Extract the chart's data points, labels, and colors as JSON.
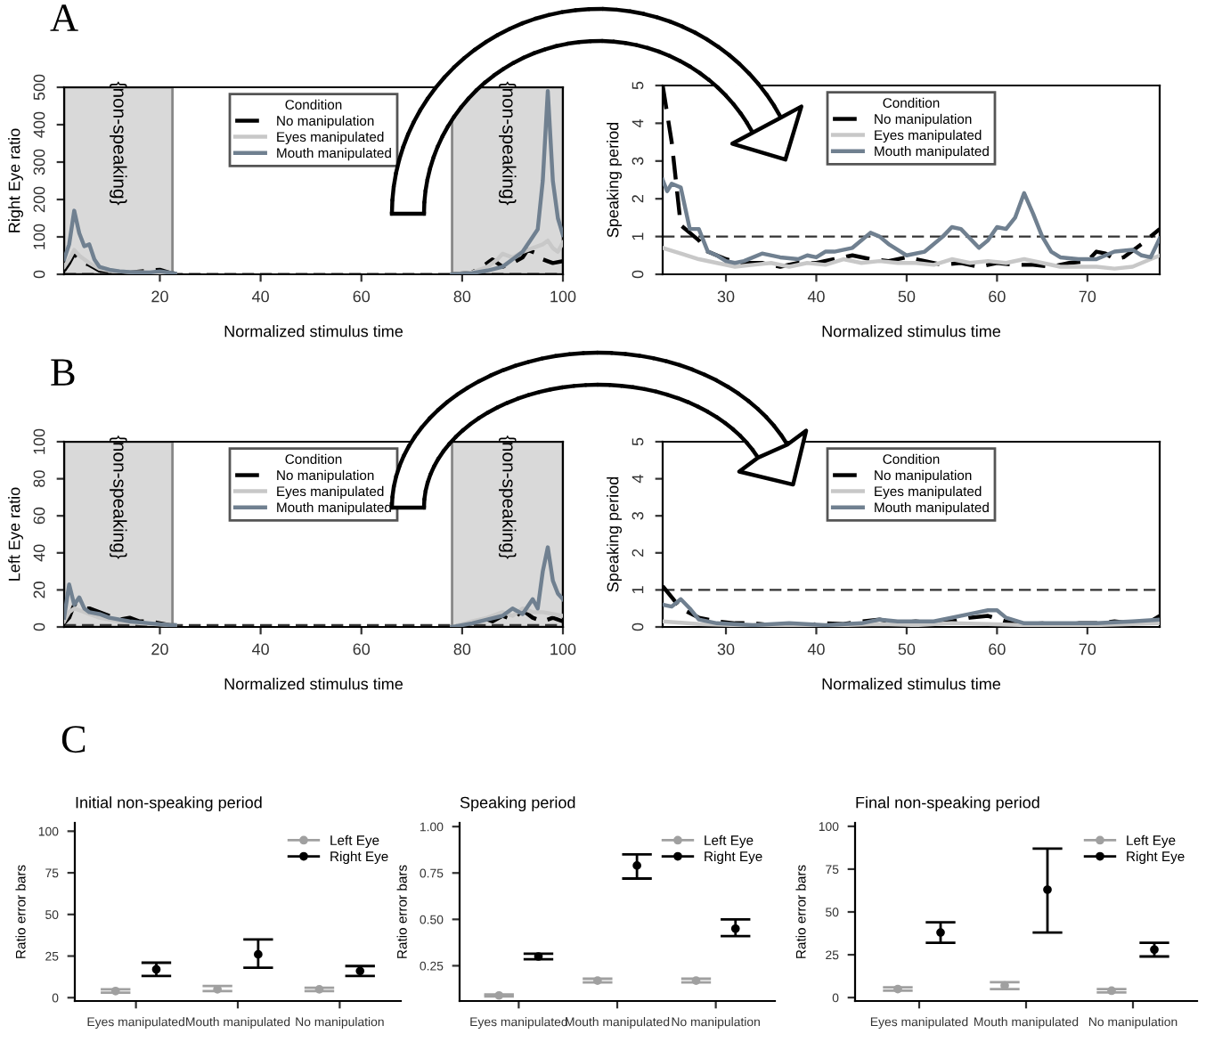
{
  "chart_data": [
    {
      "type": "line",
      "xlabel": "Normalized stimulus time",
      "ylabel": "Right Eye ratio",
      "legend_title": "Condition",
      "legend": "top",
      "annotations": [
        "A"
      ],
      "xlim": [
        1,
        100
      ],
      "xticks": [
        20,
        40,
        60,
        80,
        100
      ],
      "ylim": [
        0,
        500
      ],
      "yticks": [
        0,
        100,
        200,
        300,
        400,
        500
      ],
      "bands": [
        {
          "axis": "x",
          "from": 1,
          "to": 22.5,
          "label": "{non-speaking}",
          "color": "#d9d9d9"
        },
        {
          "axis": "x",
          "from": 78,
          "to": 100,
          "label": "{non-speaking}",
          "color": "#d9d9d9"
        }
      ],
      "ref_lines": [
        {
          "axis": "y",
          "value": 1,
          "line_style": "dashed",
          "color": "#333333"
        }
      ],
      "series": [
        {
          "name": "No manipulation",
          "color": "#000000",
          "line_style": "dashed",
          "x": [
            1,
            2,
            3,
            4,
            5,
            6,
            8,
            10,
            14,
            18,
            20,
            22,
            23,
            50,
            78,
            82,
            85,
            86,
            88,
            90,
            92,
            93,
            95,
            96,
            97,
            98,
            100
          ],
          "values": [
            10,
            30,
            55,
            40,
            30,
            25,
            10,
            8,
            5,
            10,
            12,
            4,
            2,
            null,
            0,
            5,
            30,
            40,
            20,
            30,
            45,
            65,
            55,
            40,
            35,
            30,
            35
          ]
        },
        {
          "name": "Eyes manipulated",
          "color": "#c8c8c8",
          "line_style": "solid",
          "x": [
            1,
            2,
            3,
            4,
            5,
            6,
            8,
            10,
            14,
            18,
            22,
            23,
            50,
            78,
            82,
            85,
            87,
            88,
            90,
            92,
            94,
            96,
            97,
            98,
            99,
            100
          ],
          "values": [
            20,
            40,
            65,
            50,
            40,
            30,
            15,
            10,
            6,
            5,
            3,
            2,
            null,
            0,
            5,
            20,
            40,
            55,
            45,
            60,
            70,
            80,
            90,
            70,
            60,
            85
          ]
        },
        {
          "name": "Mouth manipulated",
          "color": "#708090",
          "line_style": "solid",
          "x": [
            1,
            2,
            3,
            4,
            5,
            6,
            7,
            8,
            10,
            12,
            14,
            16,
            18,
            20,
            22,
            23,
            50,
            78,
            82,
            85,
            88,
            90,
            92,
            94,
            95,
            96,
            97,
            98,
            99,
            100
          ],
          "values": [
            40,
            80,
            170,
            110,
            75,
            80,
            40,
            20,
            12,
            8,
            6,
            5,
            5,
            8,
            4,
            2,
            null,
            0,
            3,
            10,
            20,
            40,
            60,
            100,
            120,
            250,
            490,
            250,
            150,
            105
          ]
        }
      ]
    },
    {
      "type": "line",
      "xlabel": "Normalized stimulus time",
      "ylabel": "Speaking period",
      "legend_title": "Condition",
      "legend": "top",
      "xlim": [
        23,
        78
      ],
      "xticks": [
        30,
        40,
        50,
        60,
        70
      ],
      "ylim": [
        0,
        5
      ],
      "yticks": [
        0,
        1,
        2,
        3,
        4,
        5
      ],
      "ref_lines": [
        {
          "axis": "y",
          "value": 1,
          "line_style": "dashed",
          "color": "#333333"
        }
      ],
      "series": [
        {
          "name": "No manipulation",
          "color": "#000000",
          "line_style": "dashed",
          "x": [
            23,
            24,
            25,
            26,
            27,
            28,
            29,
            30,
            32,
            34,
            36,
            38,
            40,
            42,
            44,
            46,
            48,
            50,
            52,
            54,
            56,
            58,
            60,
            62,
            64,
            66,
            68,
            70,
            71,
            72,
            73,
            74,
            76,
            78
          ],
          "values": [
            5,
            3.5,
            1.3,
            1.1,
            0.9,
            0.6,
            0.5,
            0.4,
            0.3,
            0.3,
            0.2,
            0.3,
            0.3,
            0.4,
            0.5,
            0.4,
            0.35,
            0.45,
            0.35,
            0.25,
            0.3,
            0.2,
            0.3,
            0.25,
            0.25,
            0.2,
            0.3,
            0.35,
            0.6,
            0.55,
            0.4,
            0.45,
            0.8,
            1.2
          ]
        },
        {
          "name": "Eyes manipulated",
          "color": "#c8c8c8",
          "line_style": "solid",
          "x": [
            23,
            25,
            27,
            29,
            31,
            33,
            35,
            37,
            39,
            41,
            43,
            45,
            47,
            49,
            51,
            53,
            55,
            57,
            59,
            61,
            63,
            65,
            67,
            69,
            71,
            73,
            75,
            77,
            78
          ],
          "values": [
            0.7,
            0.55,
            0.4,
            0.3,
            0.2,
            0.25,
            0.3,
            0.2,
            0.3,
            0.25,
            0.4,
            0.3,
            0.35,
            0.3,
            0.3,
            0.25,
            0.4,
            0.3,
            0.35,
            0.3,
            0.4,
            0.3,
            0.2,
            0.2,
            0.2,
            0.15,
            0.2,
            0.4,
            0.5
          ]
        },
        {
          "name": "Mouth manipulated",
          "color": "#708090",
          "line_style": "solid",
          "x": [
            23,
            23.5,
            24,
            25,
            26,
            27,
            28,
            29,
            30,
            31,
            32,
            34,
            36,
            38,
            39,
            40,
            41,
            42,
            44,
            46,
            47,
            48,
            50,
            52,
            54,
            55,
            56,
            58,
            59,
            60,
            61,
            62,
            63,
            64,
            65,
            66,
            67,
            69,
            71,
            73,
            75,
            76,
            77,
            78
          ],
          "values": [
            2.5,
            2.2,
            2.4,
            2.3,
            1.2,
            1.2,
            0.6,
            0.5,
            0.35,
            0.3,
            0.35,
            0.55,
            0.45,
            0.4,
            0.5,
            0.45,
            0.6,
            0.6,
            0.7,
            1.1,
            1.0,
            0.8,
            0.5,
            0.6,
            1.0,
            1.25,
            1.2,
            0.7,
            0.9,
            1.25,
            1.2,
            1.5,
            2.15,
            1.6,
            1.0,
            0.6,
            0.45,
            0.4,
            0.4,
            0.6,
            0.65,
            0.5,
            0.45,
            0.95
          ]
        }
      ]
    },
    {
      "type": "line",
      "xlabel": "Normalized stimulus time",
      "ylabel": "Left Eye ratio",
      "legend_title": "Condition",
      "legend": "top",
      "annotations": [
        "B"
      ],
      "xlim": [
        1,
        100
      ],
      "xticks": [
        20,
        40,
        60,
        80,
        100
      ],
      "ylim": [
        0,
        100
      ],
      "yticks": [
        0,
        20,
        40,
        60,
        80,
        100
      ],
      "bands": [
        {
          "axis": "x",
          "from": 1,
          "to": 22.5,
          "label": "{non-speaking}",
          "color": "#d9d9d9"
        },
        {
          "axis": "x",
          "from": 78,
          "to": 100,
          "label": "{non-speaking}",
          "color": "#d9d9d9"
        }
      ],
      "ref_lines": [
        {
          "axis": "y",
          "value": 1,
          "line_style": "dashed",
          "color": "#333333"
        }
      ],
      "series": [
        {
          "name": "No manipulation",
          "color": "#000000",
          "line_style": "dashed",
          "x": [
            1,
            2,
            3,
            4,
            6,
            8,
            10,
            12,
            14,
            16,
            18,
            20,
            22,
            23,
            50,
            78,
            82,
            84,
            86,
            88,
            90,
            92,
            94,
            96,
            98,
            100
          ],
          "values": [
            2,
            5,
            12,
            10,
            10,
            8,
            6,
            4,
            5,
            3,
            3,
            2,
            1,
            1,
            null,
            0,
            2,
            5,
            3,
            6,
            4,
            9,
            5,
            3,
            5,
            3
          ]
        },
        {
          "name": "Eyes manipulated",
          "color": "#c8c8c8",
          "line_style": "solid",
          "x": [
            1,
            2,
            3,
            4,
            6,
            8,
            12,
            16,
            22,
            23,
            50,
            78,
            82,
            85,
            88,
            90,
            92,
            94,
            96,
            98,
            100
          ],
          "values": [
            3,
            8,
            10,
            9,
            7,
            5,
            3,
            2,
            1,
            1,
            null,
            0,
            3,
            5,
            8,
            6,
            10,
            8,
            8,
            7,
            6
          ]
        },
        {
          "name": "Mouth manipulated",
          "color": "#708090",
          "line_style": "solid",
          "x": [
            1,
            2,
            3,
            4,
            5,
            6,
            8,
            10,
            14,
            18,
            22,
            23,
            50,
            78,
            82,
            85,
            88,
            90,
            92,
            94,
            95,
            96,
            97,
            98,
            99,
            100
          ],
          "values": [
            5,
            23,
            12,
            16,
            10,
            8,
            7,
            5,
            3,
            2,
            1,
            1,
            null,
            0,
            2,
            4,
            6,
            10,
            7,
            15,
            10,
            30,
            43,
            25,
            18,
            15
          ]
        }
      ]
    },
    {
      "type": "line",
      "xlabel": "Normalized stimulus time",
      "ylabel": "Speaking period",
      "legend_title": "Condition",
      "legend": "top",
      "xlim": [
        23,
        78
      ],
      "xticks": [
        30,
        40,
        50,
        60,
        70
      ],
      "ylim": [
        0,
        5
      ],
      "yticks": [
        0,
        1,
        2,
        3,
        4,
        5
      ],
      "ref_lines": [
        {
          "axis": "y",
          "value": 1,
          "line_style": "dashed",
          "color": "#333333"
        }
      ],
      "series": [
        {
          "name": "No manipulation",
          "color": "#000000",
          "line_style": "dashed",
          "x": [
            23,
            24,
            25,
            27,
            29,
            31,
            33,
            35,
            37,
            39,
            41,
            43,
            45,
            47,
            49,
            51,
            53,
            55,
            57,
            59,
            61,
            63,
            65,
            67,
            69,
            71,
            73,
            75,
            77,
            78
          ],
          "values": [
            1.1,
            0.8,
            0.5,
            0.25,
            0.15,
            0.1,
            0.1,
            0.05,
            0.08,
            0.05,
            0.1,
            0.08,
            0.15,
            0.2,
            0.1,
            0.15,
            0.1,
            0.15,
            0.25,
            0.3,
            0.15,
            0.05,
            0.1,
            0.05,
            0.1,
            0.1,
            0.15,
            0.1,
            0.15,
            0.3
          ]
        },
        {
          "name": "Eyes manipulated",
          "color": "#c8c8c8",
          "line_style": "solid",
          "x": [
            23,
            27,
            31,
            35,
            39,
            43,
            47,
            51,
            55,
            59,
            63,
            67,
            71,
            75,
            78
          ],
          "values": [
            0.15,
            0.08,
            0.05,
            0.05,
            0.03,
            0.05,
            0.08,
            0.05,
            0.1,
            0.08,
            0.05,
            0.05,
            0.05,
            0.08,
            0.1
          ]
        },
        {
          "name": "Mouth manipulated",
          "color": "#708090",
          "line_style": "solid",
          "x": [
            23,
            24,
            25,
            26,
            27,
            29,
            33,
            37,
            41,
            45,
            47,
            49,
            53,
            57,
            59,
            60,
            61,
            63,
            67,
            71,
            75,
            78
          ],
          "values": [
            0.6,
            0.55,
            0.75,
            0.5,
            0.2,
            0.1,
            0.05,
            0.1,
            0.05,
            0.1,
            0.2,
            0.15,
            0.15,
            0.35,
            0.45,
            0.45,
            0.25,
            0.1,
            0.1,
            0.1,
            0.15,
            0.2
          ]
        }
      ]
    },
    {
      "type": "scatter",
      "title": "Initial non-speaking period",
      "ylabel": "Ratio error bars",
      "legend": "top right",
      "marker": "circle",
      "annotations": [
        "C"
      ],
      "categories": [
        "Eyes manipulated",
        "Mouth manipulated",
        "No manipulation"
      ],
      "ylim": [
        -2,
        105
      ],
      "yticks": [
        0,
        25,
        50,
        75,
        100
      ],
      "series": [
        {
          "name": "Left Eye",
          "color": "#a0a0a0",
          "values": [
            4,
            5,
            5
          ],
          "errors": [
            [
              3,
              5
            ],
            [
              4,
              7
            ],
            [
              4,
              6
            ]
          ]
        },
        {
          "name": "Right Eye",
          "color": "#000000",
          "values": [
            17,
            26,
            16
          ],
          "errors": [
            [
              13,
              21
            ],
            [
              18,
              35
            ],
            [
              13,
              19
            ]
          ]
        }
      ]
    },
    {
      "type": "scatter",
      "title": "Speaking period",
      "ylabel": "Ratio error bars",
      "legend": "top right",
      "marker": "circle",
      "categories": [
        "Eyes manipulated",
        "Mouth manipulated",
        "No manipulation"
      ],
      "ylim": [
        0.06,
        1.02
      ],
      "yticks": [
        0.25,
        {
          "value": 0.5,
          "label": "0.50"
        },
        0.75,
        {
          "value": 1.0,
          "label": "1.00"
        }
      ],
      "series": [
        {
          "name": "Left Eye",
          "color": "#a0a0a0",
          "values": [
            0.09,
            0.17,
            0.17
          ],
          "errors": [
            [
              0.085,
              0.095
            ],
            [
              0.16,
              0.18
            ],
            [
              0.16,
              0.18
            ]
          ]
        },
        {
          "name": "Right Eye",
          "color": "#000000",
          "values": [
            0.3,
            0.79,
            0.45
          ],
          "errors": [
            [
              0.285,
              0.315
            ],
            [
              0.72,
              0.85
            ],
            [
              0.41,
              0.5
            ]
          ]
        }
      ]
    },
    {
      "type": "scatter",
      "title": "Final non-speaking period",
      "ylabel": "Ratio error bars",
      "legend": "top right",
      "marker": "circle",
      "categories": [
        "Eyes manipulated",
        "Mouth manipulated",
        "No manipulation"
      ],
      "ylim": [
        -2,
        102
      ],
      "yticks": [
        0,
        25,
        50,
        75,
        100
      ],
      "series": [
        {
          "name": "Left Eye",
          "color": "#a0a0a0",
          "values": [
            5,
            7,
            4
          ],
          "errors": [
            [
              4,
              6
            ],
            [
              5,
              9
            ],
            [
              3,
              5
            ]
          ]
        },
        {
          "name": "Right Eye",
          "color": "#000000",
          "values": [
            38,
            63,
            28
          ],
          "errors": [
            [
              32,
              44
            ],
            [
              38,
              87
            ],
            [
              24,
              32
            ]
          ]
        }
      ]
    }
  ]
}
